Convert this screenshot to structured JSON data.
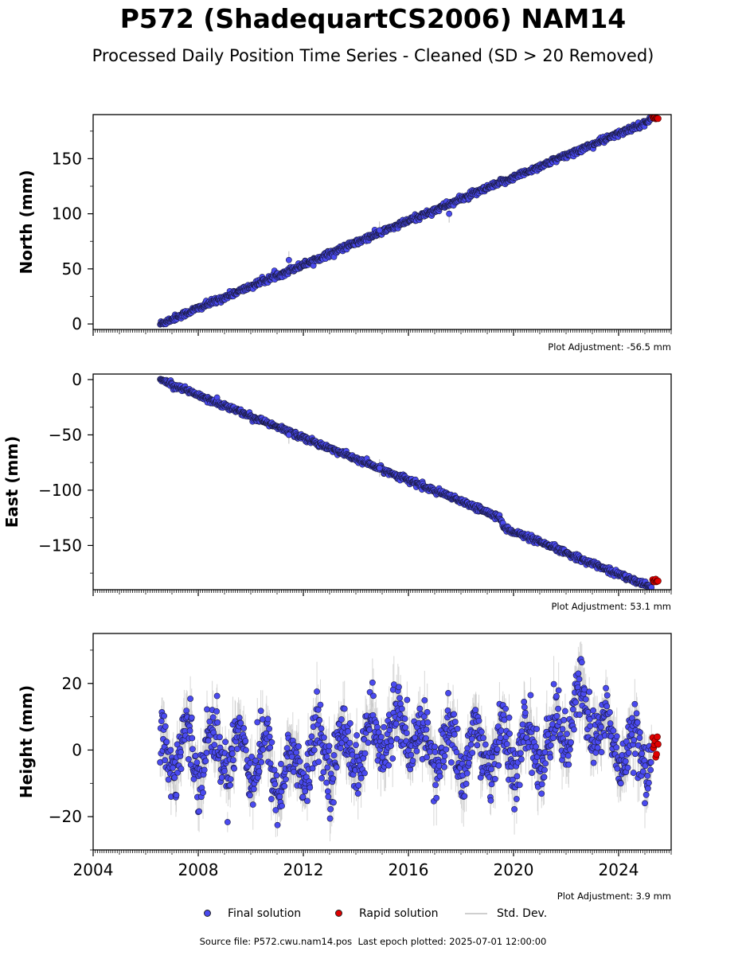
{
  "title": "P572 (ShadequartCS2006) NAM14",
  "subtitle": "Processed Daily Position Time Series - Cleaned (SD > 20 Removed)",
  "colors": {
    "final": "#4a4af0",
    "final_edge": "#1a1a40",
    "rapid": "#e00000",
    "stddev": "#bdbdbd"
  },
  "legend": {
    "final_label": "Final solution",
    "rapid_label": "Rapid solution",
    "stddev_label": "Std. Dev."
  },
  "source": {
    "file_label": "Source file: P572.cwu.nam14.pos",
    "last_epoch_label": "Last epoch plotted: 2025-07-01 12:00:00"
  },
  "chart_data": [
    {
      "type": "scatter",
      "name": "north",
      "ylabel": "North (mm)",
      "plot_adjustment": "Plot Adjustment: -56.5 mm",
      "xlim": [
        2004,
        2026
      ],
      "ylim": [
        -5,
        190
      ],
      "yticks": [
        0,
        50,
        100,
        150
      ],
      "yticks_text": [
        "0",
        "50",
        "100",
        "150"
      ],
      "xticks": [
        2004,
        2008,
        2012,
        2016,
        2020,
        2024
      ],
      "xtick_labels_visible": false,
      "final": {
        "start_year": 2006.55,
        "end_year": 2025.25,
        "start_value": 0,
        "end_value": 185,
        "noise": 1.4,
        "stddev": 2.5,
        "outliers": [
          [
            2011.45,
            58
          ],
          [
            2014.9,
            85
          ],
          [
            2017.55,
            100
          ]
        ]
      },
      "rapid": {
        "start_year": 2025.3,
        "end_year": 2025.5,
        "values_min": 186,
        "values_max": 188
      }
    },
    {
      "type": "scatter",
      "name": "east",
      "ylabel": "East (mm)",
      "plot_adjustment": "Plot Adjustment: 53.1 mm",
      "xlim": [
        2004,
        2026
      ],
      "ylim": [
        -190,
        5
      ],
      "yticks": [
        0,
        -50,
        -100,
        -150
      ],
      "yticks_text": [
        "0",
        "−50",
        "−100",
        "−150"
      ],
      "xticks": [
        2004,
        2008,
        2012,
        2016,
        2020,
        2024
      ],
      "xtick_labels_visible": false,
      "final": {
        "start_year": 2006.55,
        "end_year": 2025.25,
        "start_value": 0,
        "end_value": -180,
        "noise": 1.3,
        "stddev": 2.5,
        "step": {
          "year": 2019.45,
          "offset": -8
        },
        "outliers": [
          [
            2011.45,
            -50
          ],
          [
            2014.9,
            -80
          ]
        ]
      },
      "rapid": {
        "start_year": 2025.3,
        "end_year": 2025.5,
        "values_min": -183,
        "values_max": -180
      }
    },
    {
      "type": "scatter",
      "name": "height",
      "ylabel": "Height (mm)",
      "plot_adjustment": "Plot Adjustment: 3.9 mm",
      "xlim": [
        2004,
        2026
      ],
      "ylim": [
        -30,
        35
      ],
      "yticks": [
        -20,
        0,
        20
      ],
      "yticks_text": [
        "−20",
        "0",
        "20"
      ],
      "xticks": [
        2004,
        2008,
        2012,
        2016,
        2020,
        2024
      ],
      "xticks_text": [
        "2004",
        "2008",
        "2012",
        "2016",
        "2020",
        "2024"
      ],
      "xtick_labels_visible": true,
      "final": {
        "start_year": 2006.55,
        "end_year": 2025.25,
        "start_value": 0,
        "end_value": 0,
        "seasonal_amplitude": 7,
        "noise": 4.5,
        "stddev": 6,
        "trend_bumps": [
          [
            2015.5,
            6
          ],
          [
            2022.6,
            12
          ],
          [
            2011.3,
            -7
          ]
        ]
      },
      "rapid": {
        "start_year": 2025.3,
        "end_year": 2025.5,
        "values_min": -3,
        "values_max": 4
      }
    }
  ]
}
